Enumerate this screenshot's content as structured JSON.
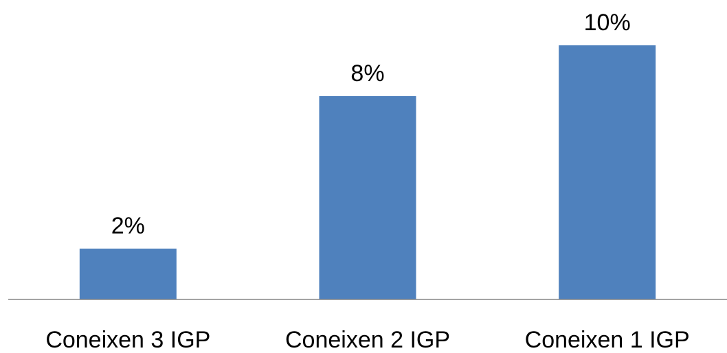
{
  "chart_data": {
    "type": "bar",
    "categories": [
      "Coneixen 3 IGP",
      "Coneixen 2 IGP",
      "Coneixen 1 IGP"
    ],
    "values": [
      2,
      8,
      10
    ],
    "data_labels": [
      "2%",
      "8%",
      "10%"
    ],
    "unit": "%",
    "title": "",
    "xlabel": "",
    "ylabel": "",
    "ylim": [
      0,
      11
    ],
    "grid": false,
    "legend": "none",
    "bar_color": "#4F81BD",
    "axis_color": "#868686"
  }
}
